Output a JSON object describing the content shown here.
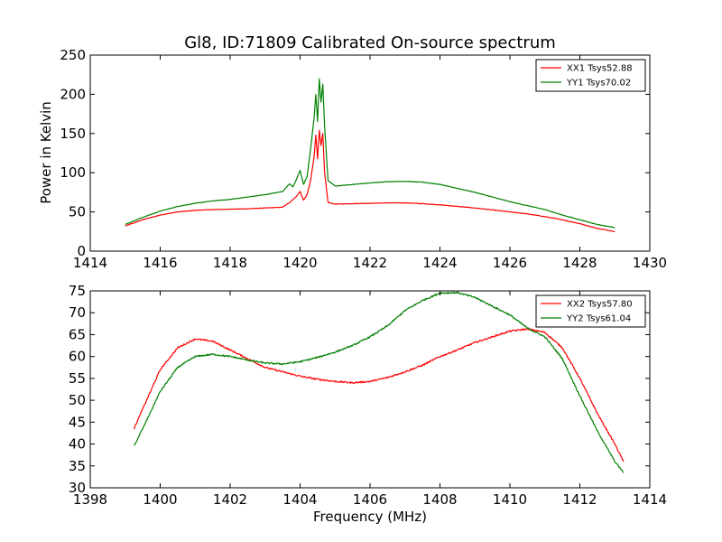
{
  "figure_title": "Gl8, ID:71809 Calibrated On-source spectrum",
  "x_axis_label": "Frequency (MHz)",
  "y_axis_label": "Power in Kelvin",
  "colors": {
    "xx": "#ff0000",
    "yy": "#008000"
  },
  "chart_data": [
    {
      "type": "line",
      "title": "Gl8, ID:71809 Calibrated On-source spectrum",
      "xlabel": "",
      "ylabel": "Power in Kelvin",
      "xlim": [
        1414,
        1430
      ],
      "ylim": [
        0,
        250
      ],
      "xticks": [
        1414,
        1416,
        1418,
        1420,
        1422,
        1424,
        1426,
        1428,
        1430
      ],
      "yticks": [
        0,
        50,
        100,
        150,
        200,
        250
      ],
      "grid": false,
      "legend_position": "top-right",
      "series": [
        {
          "name": "XX1 Tsys52.88",
          "color": "#ff0000",
          "x": [
            1415.0,
            1415.5,
            1416.0,
            1416.5,
            1417.0,
            1417.5,
            1418.0,
            1418.5,
            1419.0,
            1419.5,
            1419.7,
            1419.9,
            1420.0,
            1420.1,
            1420.2,
            1420.3,
            1420.4,
            1420.45,
            1420.5,
            1420.55,
            1420.6,
            1420.65,
            1420.7,
            1420.8,
            1421.0,
            1421.5,
            1422.0,
            1422.5,
            1423.0,
            1423.5,
            1424.0,
            1424.5,
            1425.0,
            1425.5,
            1426.0,
            1426.5,
            1427.0,
            1427.5,
            1428.0,
            1428.5,
            1429.0
          ],
          "y": [
            32,
            40,
            46,
            50,
            52,
            53,
            53.5,
            54,
            55,
            56,
            62,
            70,
            76,
            65,
            72,
            90,
            120,
            148,
            118,
            154,
            135,
            150,
            100,
            62,
            60,
            60.5,
            61,
            61.5,
            61.5,
            60.5,
            59,
            57,
            55,
            52.5,
            50,
            47.5,
            44,
            40,
            35,
            29,
            25
          ]
        },
        {
          "name": "YY1 Tsys70.02",
          "color": "#008000",
          "x": [
            1415.0,
            1415.5,
            1416.0,
            1416.5,
            1417.0,
            1417.5,
            1418.0,
            1418.5,
            1419.0,
            1419.5,
            1419.7,
            1419.8,
            1419.9,
            1420.0,
            1420.1,
            1420.2,
            1420.3,
            1420.4,
            1420.45,
            1420.5,
            1420.55,
            1420.6,
            1420.65,
            1420.7,
            1420.8,
            1421.0,
            1421.5,
            1422.0,
            1422.5,
            1423.0,
            1423.5,
            1424.0,
            1424.5,
            1425.0,
            1425.5,
            1426.0,
            1426.5,
            1427.0,
            1427.5,
            1428.0,
            1428.5,
            1429.0
          ],
          "y": [
            34,
            43,
            51,
            57,
            61,
            64,
            66,
            69,
            72,
            76,
            86,
            82,
            92,
            103,
            85,
            95,
            130,
            170,
            200,
            165,
            220,
            190,
            213,
            160,
            90,
            83,
            85,
            87,
            88.5,
            89,
            88,
            85,
            80,
            75,
            69,
            63,
            58,
            53,
            46,
            40,
            34,
            30
          ]
        }
      ]
    },
    {
      "type": "line",
      "title": "",
      "xlabel": "Frequency (MHz)",
      "ylabel": "",
      "xlim": [
        1398,
        1414
      ],
      "ylim": [
        30,
        75
      ],
      "xticks": [
        1398,
        1400,
        1402,
        1404,
        1406,
        1408,
        1410,
        1412,
        1414
      ],
      "yticks": [
        30,
        35,
        40,
        45,
        50,
        55,
        60,
        65,
        70,
        75
      ],
      "grid": false,
      "legend_position": "top-right",
      "series": [
        {
          "name": "XX2 Tsys57.80",
          "color": "#ff0000",
          "x": [
            1399.25,
            1399.5,
            1400.0,
            1400.5,
            1401.0,
            1401.5,
            1402.0,
            1402.5,
            1403.0,
            1403.5,
            1404.0,
            1404.5,
            1405.0,
            1405.5,
            1406.0,
            1406.5,
            1407.0,
            1407.5,
            1408.0,
            1408.5,
            1409.0,
            1409.5,
            1410.0,
            1410.5,
            1411.0,
            1411.5,
            1412.0,
            1412.5,
            1413.0,
            1413.25
          ],
          "y": [
            43.5,
            48,
            57,
            62,
            64,
            63.5,
            61.5,
            59.5,
            57.5,
            56.5,
            55.5,
            54.8,
            54.3,
            54.0,
            54.3,
            55.2,
            56.5,
            58,
            60,
            61.5,
            63.2,
            64.5,
            65.8,
            66.3,
            65.5,
            62,
            55,
            47,
            40,
            36
          ]
        },
        {
          "name": "YY2 Tsys61.04",
          "color": "#008000",
          "x": [
            1399.25,
            1399.5,
            1400.0,
            1400.5,
            1401.0,
            1401.5,
            1402.0,
            1402.5,
            1403.0,
            1403.5,
            1404.0,
            1404.5,
            1405.0,
            1405.5,
            1406.0,
            1406.5,
            1407.0,
            1407.5,
            1408.0,
            1408.5,
            1409.0,
            1409.5,
            1410.0,
            1410.5,
            1411.0,
            1411.5,
            1412.0,
            1412.5,
            1413.0,
            1413.25
          ],
          "y": [
            39.5,
            43.5,
            52,
            57.5,
            60,
            60.5,
            60,
            59.2,
            58.5,
            58.3,
            58.8,
            59.8,
            61,
            62.5,
            64.5,
            67,
            70.5,
            72.8,
            74.5,
            74.6,
            73.5,
            71.5,
            69.5,
            66.5,
            64.5,
            59.5,
            51,
            43,
            36,
            33.5
          ]
        }
      ]
    }
  ]
}
